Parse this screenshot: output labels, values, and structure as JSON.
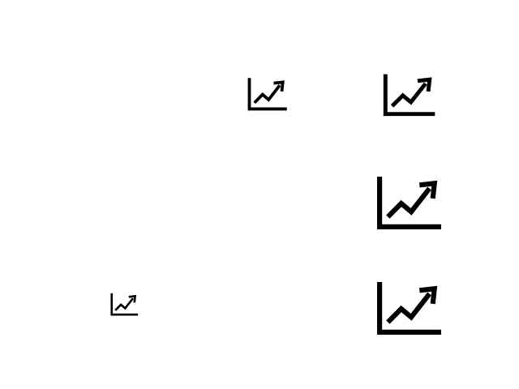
{
  "icons": [
    {
      "id": "i1",
      "name": "trending-up-chart-icon"
    },
    {
      "id": "i2",
      "name": "trending-up-chart-icon"
    },
    {
      "id": "i3",
      "name": "trending-up-chart-icon"
    },
    {
      "id": "i4",
      "name": "trending-up-chart-icon"
    },
    {
      "id": "i5",
      "name": "trending-up-chart-icon"
    }
  ],
  "colors": {
    "background": "#ffffff",
    "icon": "#000000"
  }
}
